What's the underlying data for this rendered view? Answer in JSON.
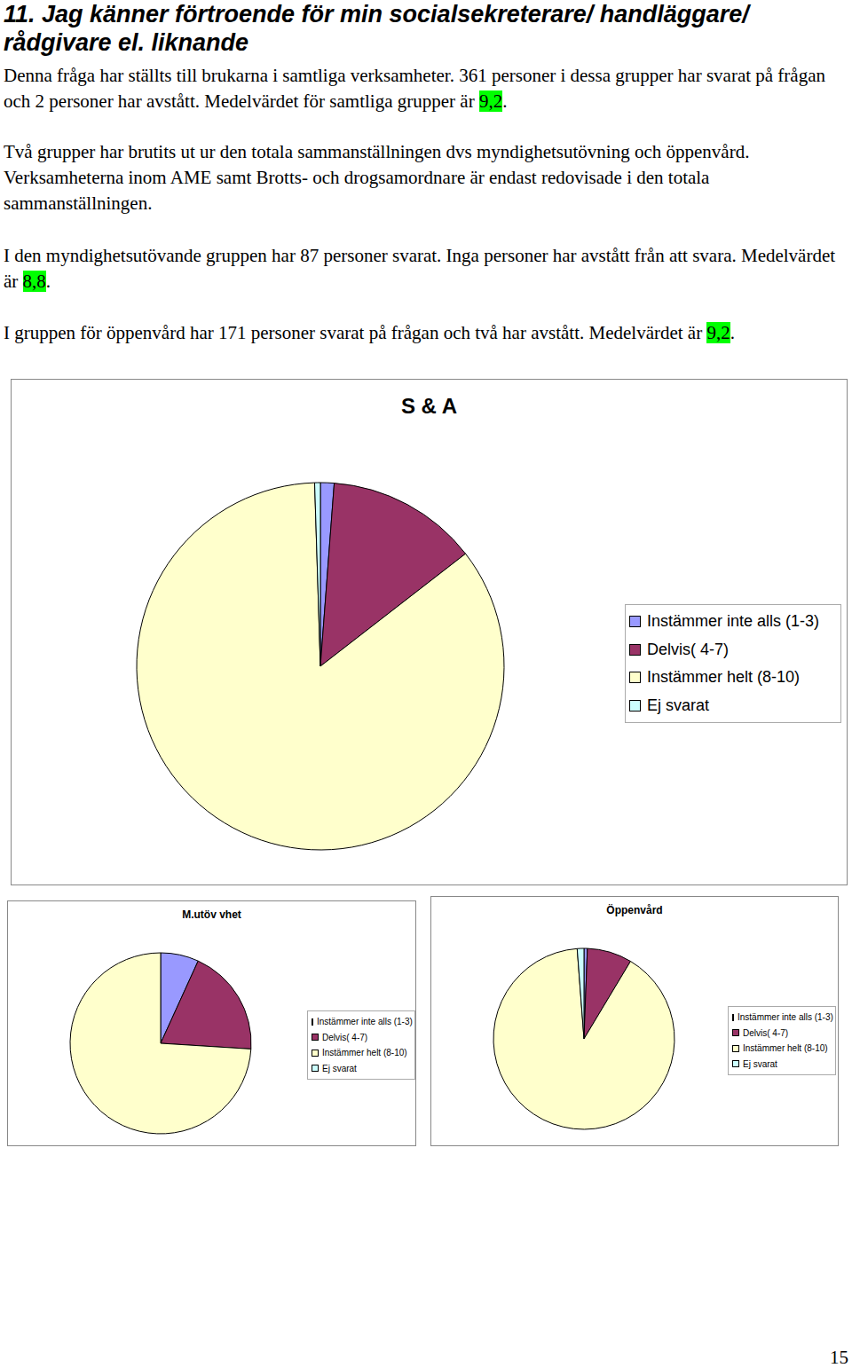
{
  "heading": "11. Jag känner förtroende för min socialsekreterare/ handläggare/ rådgivare el. liknande",
  "paragraphs": [
    {
      "text": "Denna fråga har ställts till brukarna i samtliga verksamheter. 361 personer i dessa grupper har svarat på frågan och 2 personer har avstått. Medelvärdet för samtliga grupper är ",
      "highlight": "9,2",
      "after": "."
    },
    {
      "text": "Två grupper har brutits ut ur den totala sammanställningen dvs myndighetsutövning och öppenvård. Verksamheterna inom AME samt Brotts- och drogsamordnare är endast redovisade i den totala sammanställningen.",
      "highlight": null,
      "after": null
    },
    {
      "text": "I den myndighetsutövande gruppen har 87 personer svarat. Inga personer har avstått från att svara. Medelvärdet är ",
      "highlight": "8,8",
      "after": "."
    },
    {
      "text": "I gruppen för öppenvård har 171 personer svarat på frågan och två har avstått. Medelvärdet är ",
      "highlight": "9,2",
      "after": "."
    }
  ],
  "page_number": "15",
  "chart_data": [
    {
      "type": "pie",
      "title": "S & A",
      "categories": [
        "Instämmer inte alls (1-3)",
        "Delvis( 4-7)",
        "Instämmer helt (8-10)",
        "Ej svarat"
      ],
      "values": [
        1.2,
        13.3,
        85,
        0.5
      ],
      "colors": [
        "#9999ff",
        "#993366",
        "#ffffcc",
        "#ccffff"
      ],
      "legend": "right"
    },
    {
      "type": "pie",
      "title": "M.utöv vhet",
      "categories": [
        "Instämmer inte alls (1-3)",
        "Delvis( 4-7)",
        "Instämmer helt (8-10)",
        "Ej svarat"
      ],
      "values": [
        6.8,
        19.2,
        74,
        0
      ],
      "colors": [
        "#9999ff",
        "#993366",
        "#ffffcc",
        "#ccffff"
      ],
      "legend": "right"
    },
    {
      "type": "pie",
      "title": "Öppenvård",
      "categories": [
        "Instämmer inte alls (1-3)",
        "Delvis( 4-7)",
        "Instämmer helt (8-10)",
        "Ej svarat"
      ],
      "values": [
        0.6,
        8,
        90.2,
        1.2
      ],
      "colors": [
        "#9999ff",
        "#993366",
        "#ffffcc",
        "#ccffff"
      ],
      "legend": "right"
    }
  ]
}
